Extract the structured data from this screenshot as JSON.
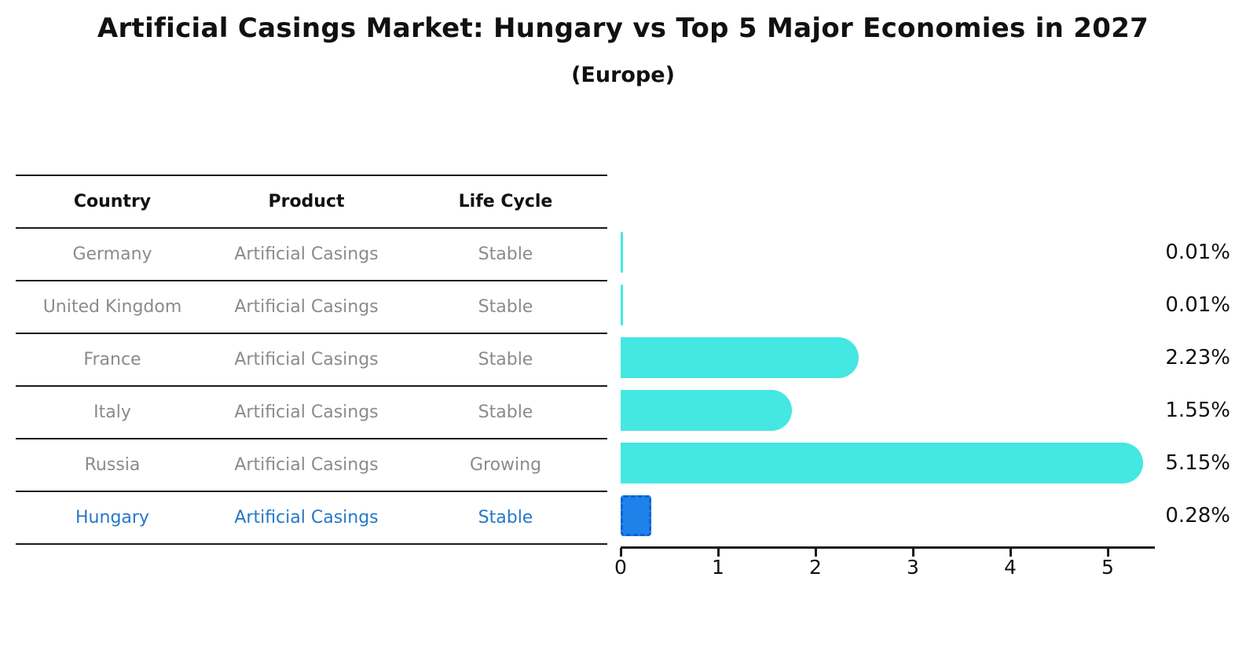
{
  "title": "Artificial Casings Market: Hungary vs Top 5 Major Economies in 2027",
  "subtitle": "(Europe)",
  "table": {
    "headers": {
      "country": "Country",
      "product": "Product",
      "life_cycle": "Life Cycle"
    },
    "rows": [
      {
        "country": "Germany",
        "product": "Artificial Casings",
        "life_cycle": "Stable"
      },
      {
        "country": "United Kingdom",
        "product": "Artificial Casings",
        "life_cycle": "Stable"
      },
      {
        "country": "France",
        "product": "Artificial Casings",
        "life_cycle": "Stable"
      },
      {
        "country": "Italy",
        "product": "Artificial Casings",
        "life_cycle": "Stable"
      },
      {
        "country": "Russia",
        "product": "Artificial Casings",
        "life_cycle": "Growing"
      },
      {
        "country": "Hungary",
        "product": "Artificial Casings",
        "life_cycle": "Stable"
      }
    ]
  },
  "chart_data": {
    "type": "bar",
    "orientation": "horizontal",
    "title": "Artificial Casings Market: Hungary vs Top 5 Major Economies in 2027",
    "subtitle": "(Europe)",
    "categories": [
      "Germany",
      "United Kingdom",
      "France",
      "Italy",
      "Russia",
      "Hungary"
    ],
    "values": [
      0.01,
      0.01,
      2.23,
      1.55,
      5.15,
      0.28
    ],
    "value_labels": [
      "0.01%",
      "0.01%",
      "2.23%",
      "1.55%",
      "5.15%",
      "0.28%"
    ],
    "x_ticks": [
      0,
      1,
      2,
      3,
      4,
      5
    ],
    "xlim": [
      0,
      5.45
    ],
    "grid": false,
    "legend": false,
    "bar_color": "#44e7e2",
    "highlight_color": "#1e82eb",
    "highlight_index": 5
  },
  "colors": {
    "highlight_text": "#2577c8",
    "table_text": "#8b8b8b",
    "heading_text": "#111111",
    "line": "#1a1a1a"
  }
}
